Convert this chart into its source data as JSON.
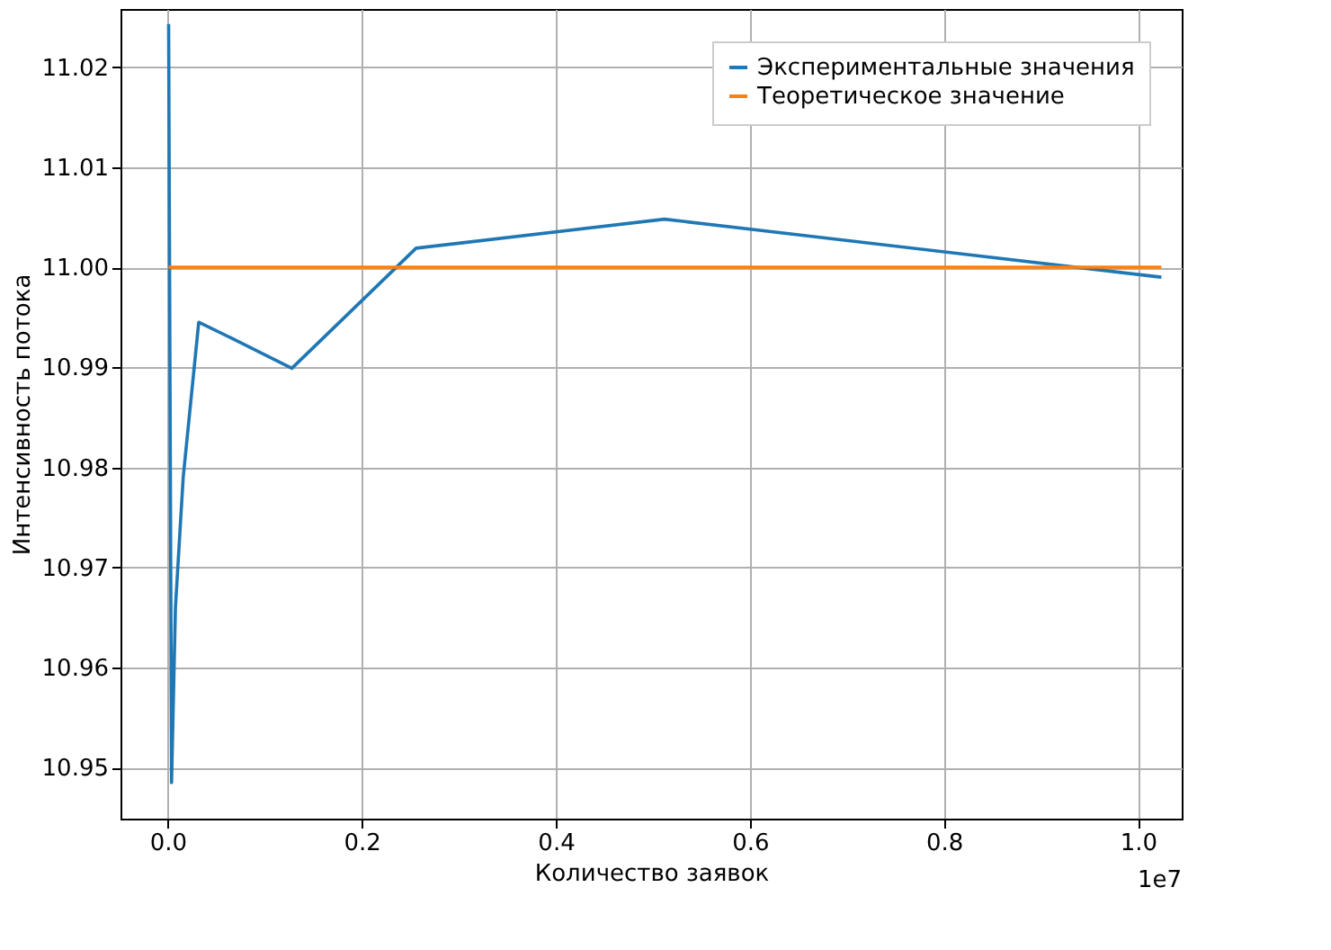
{
  "chart_data": {
    "type": "line",
    "xlabel": "Количество заявок",
    "ylabel": "Интенсивность потока",
    "series": [
      {
        "name": "Экспериментальные значения",
        "color": "#1f77b4",
        "x": [
          0.001,
          0.004,
          0.008,
          0.016,
          0.032,
          0.064,
          0.128,
          0.256,
          0.512,
          1.024
        ],
        "values": [
          11.0243,
          10.9485,
          10.966,
          10.979,
          10.9945,
          10.993,
          10.9899,
          11.0019,
          11.0048,
          10.999
        ]
      },
      {
        "name": "Теоретическое значение",
        "color": "#ff7f0e",
        "x": [
          0.001,
          1.024
        ],
        "values": [
          11.0,
          11.0
        ]
      }
    ],
    "xlim": [
      -0.0486,
      1.045
    ],
    "ylim": [
      10.9449,
      11.0258
    ],
    "xticks": [
      {
        "value": 0,
        "label": "0.0"
      },
      0.2,
      0.4,
      0.6,
      0.8,
      {
        "value": 1,
        "label": "1.0"
      }
    ],
    "yticks": [
      {
        "value": 10.95,
        "label": "10.95"
      },
      {
        "value": 10.96,
        "label": "10.96"
      },
      {
        "value": 10.97,
        "label": "10.97"
      },
      {
        "value": 10.98,
        "label": "10.98"
      },
      {
        "value": 10.99,
        "label": "10.99"
      },
      {
        "value": 11.0,
        "label": "11.00"
      },
      {
        "value": 11.01,
        "label": "11.01"
      },
      {
        "value": 11.02,
        "label": "11.02"
      }
    ],
    "annotations": [
      "1e7"
    ],
    "grid": true,
    "legend": "top right",
    "line_style": "solid",
    "marker": "none"
  }
}
